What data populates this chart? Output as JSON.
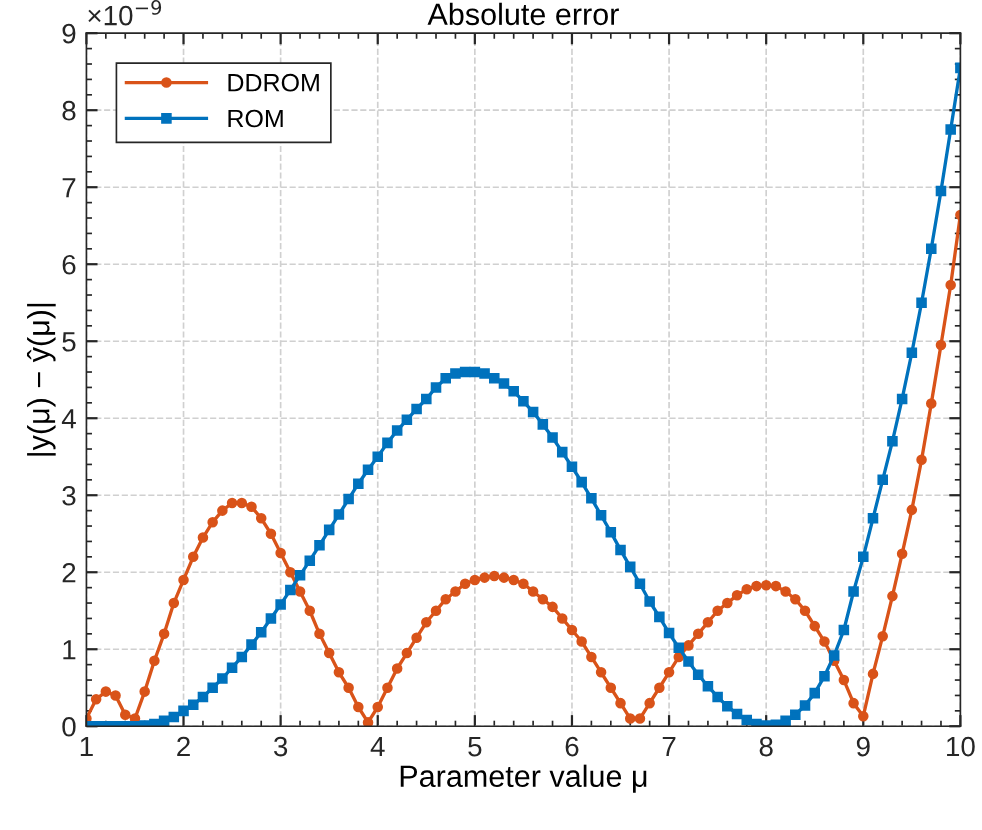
{
  "chart_data": {
    "type": "line",
    "title": "Absolute error",
    "xlabel": "Parameter value μ",
    "ylabel": "|y(μ) − ŷ(μ)|",
    "annotations": [
      "×10$^{−9}$"
    ],
    "x": [
      1.0,
      1.1,
      1.2,
      1.3,
      1.4,
      1.5,
      1.6,
      1.7,
      1.8,
      1.9,
      2.0,
      2.1,
      2.2,
      2.3,
      2.4,
      2.5,
      2.6,
      2.7,
      2.8,
      2.9,
      3.0,
      3.1,
      3.2,
      3.3,
      3.4,
      3.5,
      3.6,
      3.7,
      3.8,
      3.9,
      4.0,
      4.1,
      4.2,
      4.3,
      4.4,
      4.5,
      4.6,
      4.7,
      4.8,
      4.9,
      5.0,
      5.1,
      5.2,
      5.3,
      5.4,
      5.5,
      5.6,
      5.7,
      5.8,
      5.9,
      6.0,
      6.1,
      6.2,
      6.3,
      6.4,
      6.5,
      6.6,
      6.7,
      6.8,
      6.9,
      7.0,
      7.1,
      7.2,
      7.3,
      7.4,
      7.5,
      7.6,
      7.7,
      7.8,
      7.9,
      8.0,
      8.1,
      8.2,
      8.3,
      8.4,
      8.5,
      8.6,
      8.7,
      8.8,
      8.9,
      9.0,
      9.1,
      9.2,
      9.3,
      9.4,
      9.5,
      9.6,
      9.7,
      9.8,
      9.9,
      10.0
    ],
    "series": [
      {
        "name": "DDROM",
        "color": "#d95319",
        "marker": "circle",
        "values": [
          0.1,
          0.35,
          0.45,
          0.4,
          0.15,
          0.1,
          0.45,
          0.85,
          1.2,
          1.6,
          1.9,
          2.2,
          2.45,
          2.65,
          2.8,
          2.9,
          2.9,
          2.85,
          2.7,
          2.5,
          2.25,
          2.0,
          1.75,
          1.5,
          1.2,
          0.95,
          0.7,
          0.5,
          0.25,
          0.05,
          0.25,
          0.5,
          0.75,
          0.95,
          1.15,
          1.35,
          1.5,
          1.65,
          1.75,
          1.85,
          1.9,
          1.93,
          1.95,
          1.93,
          1.9,
          1.85,
          1.75,
          1.65,
          1.55,
          1.4,
          1.25,
          1.1,
          0.9,
          0.7,
          0.5,
          0.3,
          0.1,
          0.1,
          0.3,
          0.5,
          0.7,
          0.9,
          1.05,
          1.2,
          1.35,
          1.5,
          1.6,
          1.7,
          1.78,
          1.82,
          1.83,
          1.82,
          1.75,
          1.65,
          1.5,
          1.3,
          1.1,
          0.85,
          0.6,
          0.3,
          0.13,
          0.68,
          1.17,
          1.69,
          2.24,
          2.81,
          3.46,
          4.19,
          4.95,
          5.73,
          6.64
        ]
      },
      {
        "name": "ROM",
        "color": "#0072bd",
        "marker": "square",
        "values": [
          0,
          0,
          0,
          0,
          0,
          0,
          0.01,
          0.03,
          0.07,
          0.12,
          0.2,
          0.28,
          0.38,
          0.5,
          0.62,
          0.76,
          0.9,
          1.06,
          1.22,
          1.4,
          1.58,
          1.77,
          1.96,
          2.15,
          2.35,
          2.55,
          2.75,
          2.95,
          3.15,
          3.33,
          3.5,
          3.68,
          3.84,
          3.98,
          4.12,
          4.25,
          4.4,
          4.52,
          4.58,
          4.6,
          4.6,
          4.58,
          4.52,
          4.45,
          4.35,
          4.22,
          4.08,
          3.92,
          3.75,
          3.56,
          3.37,
          3.17,
          2.96,
          2.74,
          2.52,
          2.29,
          2.07,
          1.85,
          1.62,
          1.42,
          1.21,
          1.02,
          0.84,
          0.67,
          0.52,
          0.38,
          0.26,
          0.16,
          0.08,
          0.03,
          0.01,
          0.02,
          0.07,
          0.15,
          0.27,
          0.43,
          0.65,
          0.92,
          1.25,
          1.75,
          2.2,
          2.7,
          3.2,
          3.7,
          4.25,
          4.85,
          5.5,
          6.2,
          6.95,
          7.75,
          8.55
        ]
      }
    ],
    "xlim": [
      1,
      10
    ],
    "xticks": [
      1,
      2,
      3,
      4,
      5,
      6,
      7,
      8,
      9,
      10
    ],
    "ylim": [
      0,
      9
    ],
    "yticks": [
      0,
      1,
      2,
      3,
      4,
      5,
      6,
      7,
      8,
      9
    ],
    "grid": true,
    "legend": "top left",
    "line_style": "solid"
  }
}
